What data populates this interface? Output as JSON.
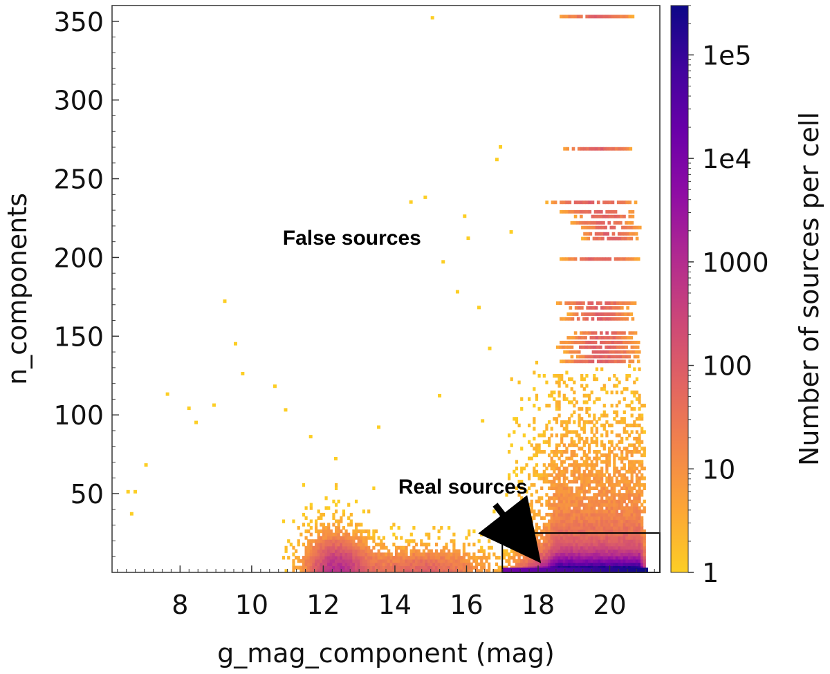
{
  "chart_data": {
    "type": "heatmap",
    "title": "",
    "xlabel": "g_mag_component (mag)",
    "ylabel": "n_components",
    "colorbar_label": "Number of sources per cell",
    "xlim": [
      6.1,
      21.4
    ],
    "ylim": [
      0,
      360
    ],
    "x_ticks": [
      8,
      10,
      12,
      14,
      16,
      18,
      20
    ],
    "x_tick_labels": [
      "8",
      "10",
      "12",
      "14",
      "16",
      "18",
      "20"
    ],
    "y_ticks": [
      50,
      100,
      150,
      200,
      250,
      300,
      350
    ],
    "y_tick_labels": [
      "50",
      "100",
      "150",
      "200",
      "250",
      "300",
      "350"
    ],
    "colorbar": {
      "scale": "log",
      "range": [
        1,
        300000
      ],
      "ticks": [
        1,
        10,
        100,
        1000,
        10000,
        100000
      ],
      "tick_labels": [
        "1",
        "10",
        "100",
        "1000",
        "1e4",
        "1e5"
      ],
      "colormap": "plasma_r",
      "colors": [
        "#fcce25",
        "#fca636",
        "#f2844b",
        "#e16462",
        "#cc4778",
        "#b12a90",
        "#8f0da4",
        "#6a00a8",
        "#41049d",
        "#0d0887"
      ]
    },
    "grid": false,
    "dense_region": {
      "x_range": [
        10.8,
        21.0
      ],
      "y_range": [
        0,
        130
      ],
      "peak_near": [
        20.5,
        1
      ]
    },
    "horizontal_streaks": [
      {
        "n": 353,
        "x_range": [
          18.6,
          20.6
        ]
      },
      {
        "n": 269,
        "x_range": [
          18.7,
          20.6
        ]
      },
      {
        "n": 235,
        "x_range": [
          18.2,
          20.8
        ]
      },
      {
        "n": 229,
        "x_range": [
          18.6,
          20.7
        ]
      },
      {
        "n": 226,
        "x_range": [
          19.0,
          20.7
        ]
      },
      {
        "n": 222,
        "x_range": [
          18.9,
          20.6
        ]
      },
      {
        "n": 219,
        "x_range": [
          19.2,
          20.8
        ]
      },
      {
        "n": 215,
        "x_range": [
          19.1,
          20.7
        ]
      },
      {
        "n": 212,
        "x_range": [
          19.2,
          20.8
        ]
      },
      {
        "n": 199,
        "x_range": [
          18.6,
          20.8
        ]
      },
      {
        "n": 171,
        "x_range": [
          18.5,
          20.7
        ]
      },
      {
        "n": 168,
        "x_range": [
          18.7,
          20.5
        ]
      },
      {
        "n": 164,
        "x_range": [
          18.8,
          20.6
        ]
      },
      {
        "n": 161,
        "x_range": [
          18.6,
          20.7
        ]
      },
      {
        "n": 152,
        "x_range": [
          19.0,
          20.7
        ]
      },
      {
        "n": 149,
        "x_range": [
          18.8,
          20.6
        ]
      },
      {
        "n": 146,
        "x_range": [
          18.6,
          20.8
        ]
      },
      {
        "n": 143,
        "x_range": [
          18.5,
          20.8
        ]
      },
      {
        "n": 140,
        "x_range": [
          18.7,
          20.8
        ]
      },
      {
        "n": 137,
        "x_range": [
          18.9,
          20.8
        ]
      },
      {
        "n": 134,
        "x_range": [
          18.6,
          20.8
        ]
      }
    ],
    "annotations": [
      {
        "text": "False sources",
        "x": 12.8,
        "y": 208
      },
      {
        "text": "Real sources",
        "x": 15.9,
        "y": 50
      }
    ],
    "arrow": {
      "from": [
        16.8,
        43
      ],
      "to": [
        18.0,
        13
      ]
    },
    "highlight_box": {
      "x_range": [
        17.0,
        21.4
      ],
      "y_range": [
        0,
        25
      ]
    }
  }
}
